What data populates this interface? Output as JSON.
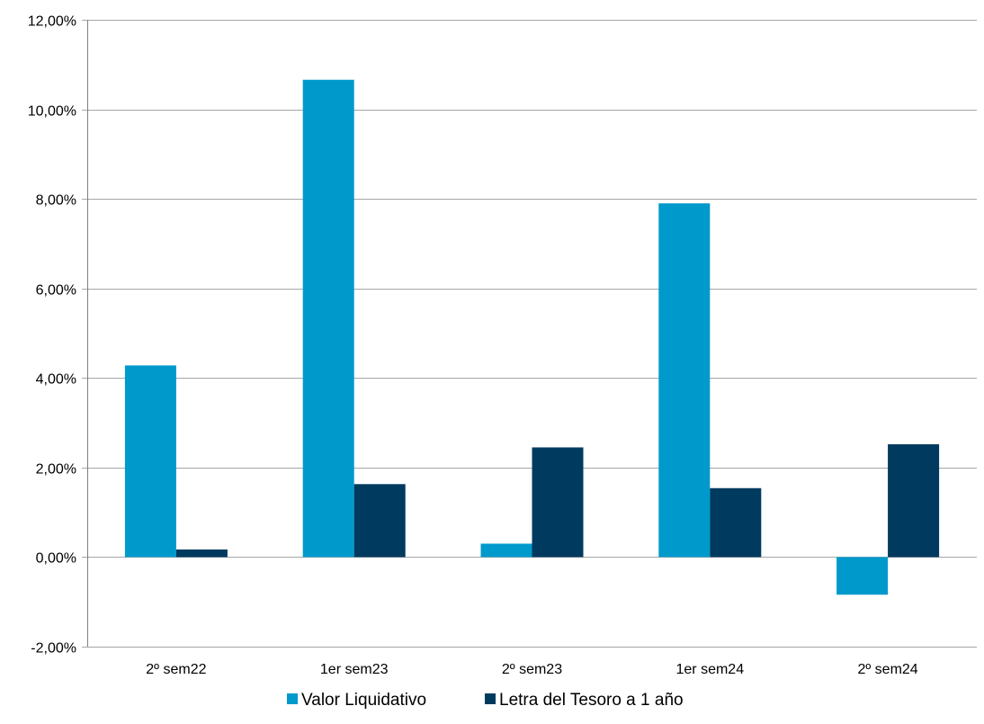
{
  "chart_data": {
    "type": "bar",
    "title": "",
    "xlabel": "",
    "ylabel": "",
    "categories": [
      "2º sem22",
      "1er sem23",
      "2º sem23",
      "1er sem24",
      "2º sem24"
    ],
    "series": [
      {
        "name": "Valor Liquidativo",
        "color": "#0099cc",
        "values": [
          4.28,
          10.66,
          0.3,
          7.9,
          -0.84
        ]
      },
      {
        "name": "Letra del Tesoro a 1 año",
        "color": "#003a5f",
        "values": [
          0.17,
          1.63,
          2.45,
          1.54,
          2.52
        ]
      }
    ],
    "ylim": [
      -2,
      12
    ],
    "yticks": [
      -2,
      0,
      2,
      4,
      6,
      8,
      10,
      12
    ],
    "ytick_labels": [
      "-2,00%",
      "0,00%",
      "2,00%",
      "4,00%",
      "6,00%",
      "8,00%",
      "10,00%",
      "12,00%"
    ],
    "grid": true,
    "legend": "bottom"
  }
}
